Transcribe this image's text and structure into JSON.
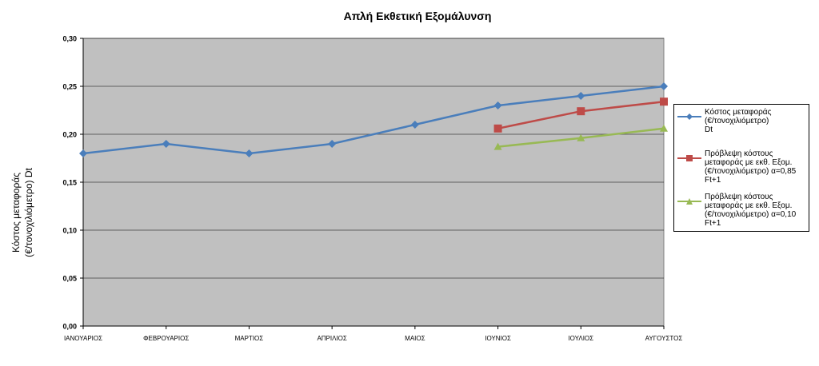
{
  "chart_data": {
    "type": "line",
    "title": "Απλή Εκθετική Εξομάλυνση",
    "ylabel": "Κόστος μεταφοράς\n(€/τονοχιλιόμετρο) Dt",
    "xlabel": "",
    "ylim": [
      0,
      0.3
    ],
    "yticks": [
      "0,00",
      "0,05",
      "0,10",
      "0,15",
      "0,20",
      "0,25",
      "0,30"
    ],
    "categories": [
      "ΙΑΝΟΥΑΡΙΟΣ",
      "ΦΕΒΡΟΥΑΡΙΟΣ",
      "ΜΑΡΤΙΟΣ",
      "ΑΠΡΙΛΙΟΣ",
      "ΜΑΙΟΣ",
      "ΙΟΥΝΙΟΣ",
      "ΙΟΥΛΙΟΣ",
      "ΑΥΓΟΥΣΤΟΣ"
    ],
    "grid": true,
    "legend_position": "right",
    "plot_background": "#C0C0C0",
    "series": [
      {
        "name": "Κόστος μεταφοράς\n(€/τονοχιλιόμετρο)\nDt",
        "color": "#4A7EBB",
        "marker": "diamond",
        "values": [
          0.18,
          0.19,
          0.18,
          0.19,
          0.21,
          0.23,
          0.24,
          0.25
        ]
      },
      {
        "name": "Πρόβλεψη κόστους\nμεταφοράς με εκθ. Εξομ.\n(€/τονοχιλιόμετρο) α=0,85\nFt+1",
        "color": "#BE4B48",
        "marker": "square",
        "values": [
          null,
          null,
          null,
          null,
          null,
          0.206,
          0.224,
          0.234
        ]
      },
      {
        "name": "Πρόβλεψη κόστους\nμεταφοράς με εκθ. Εξομ.\n(€/τονοχιλιόμετρο) α=0,10\nFt+1",
        "color": "#98B954",
        "marker": "triangle",
        "values": [
          null,
          null,
          null,
          null,
          null,
          0.187,
          0.196,
          0.206
        ]
      }
    ]
  }
}
